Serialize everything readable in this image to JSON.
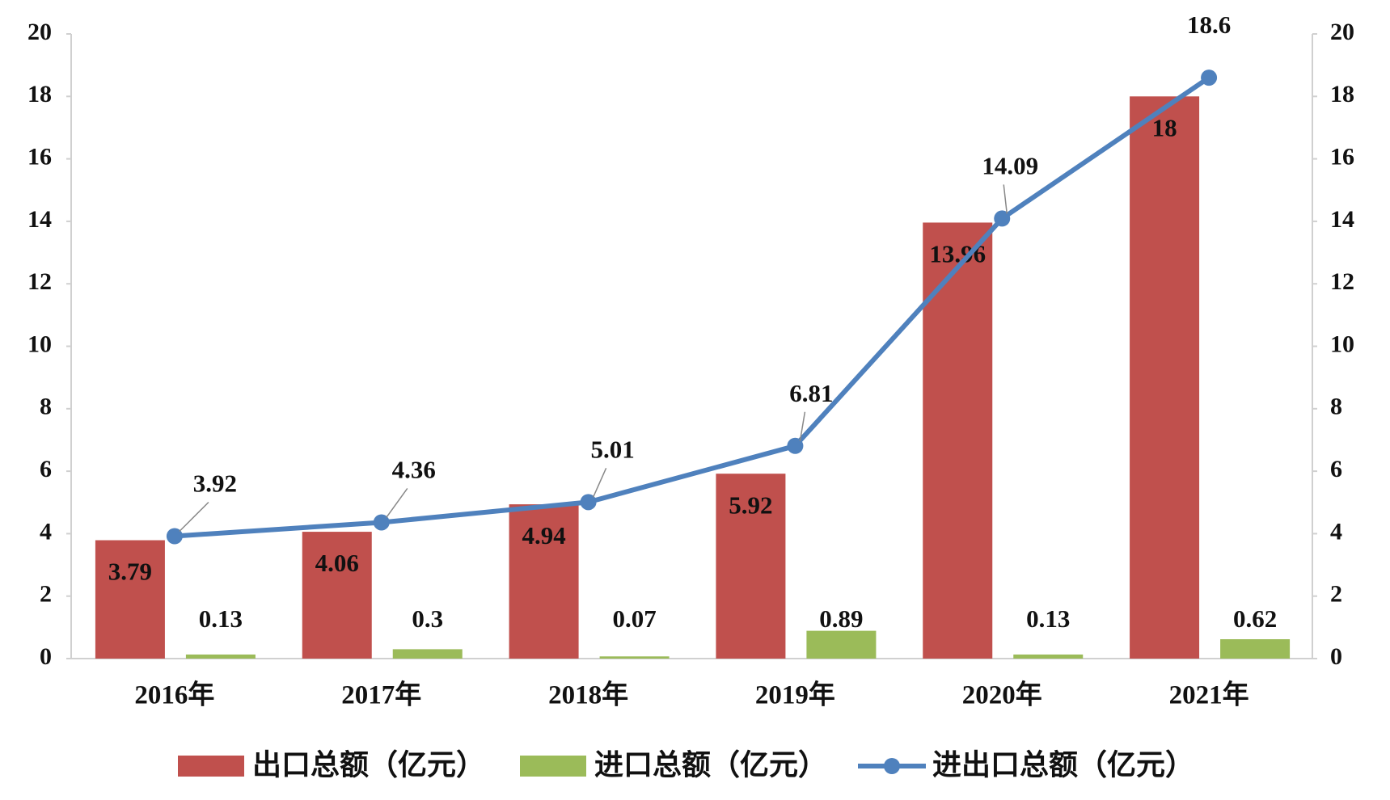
{
  "chart_data": {
    "type": "combo",
    "categories": [
      "2016年",
      "2017年",
      "2018年",
      "2019年",
      "2020年",
      "2021年"
    ],
    "series": [
      {
        "name": "出口总额（亿元）",
        "type": "bar",
        "color": "#c0504d",
        "values": [
          3.79,
          4.06,
          4.94,
          5.92,
          13.96,
          18
        ]
      },
      {
        "name": "进口总额（亿元）",
        "type": "bar",
        "color": "#9bbb59",
        "values": [
          0.13,
          0.3,
          0.07,
          0.89,
          0.13,
          0.62
        ]
      },
      {
        "name": "进出口总额（亿元）",
        "type": "line",
        "axis": "y2",
        "color": "#4f81bd",
        "values": [
          3.92,
          4.36,
          5.01,
          6.81,
          14.09,
          18.6
        ]
      }
    ],
    "ylim": [
      0,
      20
    ],
    "yticks": [
      0,
      2,
      4,
      6,
      8,
      10,
      12,
      14,
      16,
      18,
      20
    ],
    "y2lim": [
      0,
      20
    ],
    "y2ticks": [
      0,
      2,
      4,
      6,
      8,
      10,
      12,
      14,
      16,
      18,
      20
    ],
    "grid": false,
    "legend": "bottom"
  }
}
